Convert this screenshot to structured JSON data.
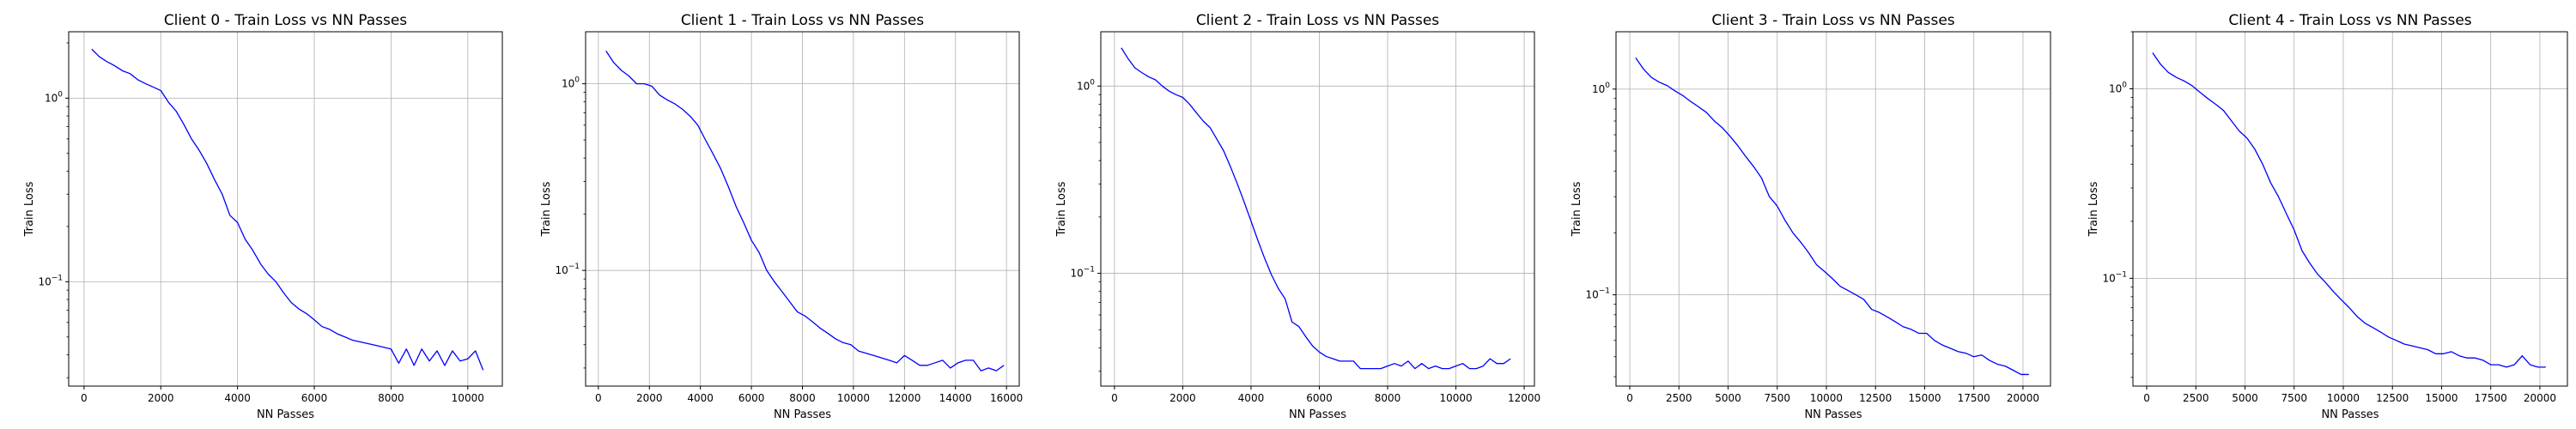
{
  "colors": {
    "line": "#0000ff",
    "grid": "#b0b0b0",
    "axes": "#000000"
  },
  "chart_data": [
    {
      "type": "line",
      "title": "Client 0 - Train Loss vs NN Passes",
      "xlabel": "NN Passes",
      "ylabel": "Train Loss",
      "yscale": "log",
      "grid": true,
      "xlim": [
        -400,
        10900
      ],
      "ylim": [
        0.027,
        2.3
      ],
      "xticks": [
        0,
        2000,
        4000,
        6000,
        8000,
        10000
      ],
      "xtick_labels": [
        "0",
        "2000",
        "4000",
        "6000",
        "8000",
        "10000"
      ],
      "series": [
        {
          "x": [
            200,
            400,
            600,
            800,
            1000,
            1200,
            1400,
            1600,
            1800,
            2000,
            2200,
            2400,
            2600,
            2800,
            3000,
            3200,
            3400,
            3600,
            3800,
            4000,
            4200,
            4400,
            4600,
            4800,
            5000,
            5200,
            5400,
            5600,
            5800,
            6000,
            6200,
            6400,
            6600,
            6800,
            7000,
            7200,
            7400,
            7600,
            7800,
            8000,
            8200,
            8400,
            8600,
            8800,
            9000,
            9200,
            9400,
            9600,
            9800,
            10000,
            10200,
            10400
          ],
          "y": [
            1.85,
            1.68,
            1.58,
            1.5,
            1.41,
            1.36,
            1.26,
            1.2,
            1.15,
            1.1,
            0.95,
            0.85,
            0.72,
            0.6,
            0.52,
            0.44,
            0.36,
            0.3,
            0.23,
            0.21,
            0.17,
            0.148,
            0.125,
            0.11,
            0.1,
            0.087,
            0.077,
            0.071,
            0.067,
            0.062,
            0.057,
            0.055,
            0.052,
            0.05,
            0.048,
            0.047,
            0.046,
            0.045,
            0.044,
            0.043,
            0.036,
            0.043,
            0.035,
            0.043,
            0.037,
            0.042,
            0.035,
            0.042,
            0.037,
            0.038,
            0.042,
            0.033
          ]
        }
      ]
    },
    {
      "type": "line",
      "title": "Client 1 - Train Loss vs NN Passes",
      "xlabel": "NN Passes",
      "ylabel": "Train Loss",
      "yscale": "log",
      "grid": true,
      "xlim": [
        -500,
        16500
      ],
      "ylim": [
        0.024,
        1.9
      ],
      "xticks": [
        0,
        2000,
        4000,
        6000,
        8000,
        10000,
        12000,
        14000,
        16000
      ],
      "xtick_labels": [
        "0",
        "2000",
        "4000",
        "6000",
        "8000",
        "10000",
        "12000",
        "14000",
        "16000"
      ],
      "series": [
        {
          "x": [
            300,
            600,
            900,
            1200,
            1500,
            1800,
            2100,
            2400,
            2700,
            3000,
            3300,
            3600,
            3900,
            4200,
            4500,
            4800,
            5100,
            5400,
            5700,
            6000,
            6300,
            6600,
            6900,
            7200,
            7500,
            7800,
            8100,
            8400,
            8700,
            9000,
            9300,
            9600,
            9900,
            10200,
            10500,
            10800,
            11100,
            11400,
            11700,
            12000,
            12300,
            12600,
            12900,
            13200,
            13500,
            13800,
            14100,
            14400,
            14700,
            15000,
            15300,
            15600,
            15900
          ],
          "y": [
            1.5,
            1.3,
            1.18,
            1.1,
            1.0,
            1.0,
            0.97,
            0.87,
            0.82,
            0.78,
            0.73,
            0.67,
            0.6,
            0.5,
            0.42,
            0.35,
            0.28,
            0.22,
            0.18,
            0.145,
            0.125,
            0.1,
            0.087,
            0.077,
            0.068,
            0.06,
            0.057,
            0.053,
            0.049,
            0.046,
            0.043,
            0.041,
            0.04,
            0.037,
            0.036,
            0.035,
            0.034,
            0.033,
            0.032,
            0.035,
            0.033,
            0.031,
            0.031,
            0.032,
            0.033,
            0.03,
            0.032,
            0.033,
            0.033,
            0.029,
            0.03,
            0.029,
            0.031
          ]
        }
      ]
    },
    {
      "type": "line",
      "title": "Client 2 - Train Loss vs NN Passes",
      "xlabel": "NN Passes",
      "ylabel": "Train Loss",
      "yscale": "log",
      "grid": true,
      "xlim": [
        -400,
        12300
      ],
      "ylim": [
        0.025,
        1.95
      ],
      "xticks": [
        0,
        2000,
        4000,
        6000,
        8000,
        10000,
        12000
      ],
      "xtick_labels": [
        "0",
        "2000",
        "4000",
        "6000",
        "8000",
        "10000",
        "12000"
      ],
      "series": [
        {
          "x": [
            200,
            400,
            600,
            800,
            1000,
            1200,
            1400,
            1600,
            1800,
            2000,
            2200,
            2400,
            2600,
            2800,
            3000,
            3200,
            3400,
            3600,
            3800,
            4000,
            4200,
            4400,
            4600,
            4800,
            5000,
            5200,
            5400,
            5600,
            5800,
            6000,
            6200,
            6400,
            6600,
            6800,
            7000,
            7200,
            7400,
            7600,
            7800,
            8000,
            8200,
            8400,
            8600,
            8800,
            9000,
            9200,
            9400,
            9600,
            9800,
            10000,
            10200,
            10400,
            10600,
            10800,
            11000,
            11200,
            11400,
            11600
          ],
          "y": [
            1.6,
            1.4,
            1.25,
            1.18,
            1.12,
            1.08,
            1.0,
            0.94,
            0.9,
            0.87,
            0.8,
            0.72,
            0.65,
            0.6,
            0.52,
            0.45,
            0.37,
            0.3,
            0.24,
            0.19,
            0.15,
            0.12,
            0.098,
            0.083,
            0.073,
            0.055,
            0.052,
            0.046,
            0.041,
            0.038,
            0.036,
            0.035,
            0.034,
            0.034,
            0.034,
            0.031,
            0.031,
            0.031,
            0.031,
            0.032,
            0.033,
            0.032,
            0.034,
            0.031,
            0.033,
            0.031,
            0.032,
            0.031,
            0.031,
            0.032,
            0.033,
            0.031,
            0.031,
            0.032,
            0.035,
            0.033,
            0.033,
            0.035
          ]
        }
      ]
    },
    {
      "type": "line",
      "title": "Client 3 - Train Loss vs NN Passes",
      "xlabel": "NN Passes",
      "ylabel": "Train Loss",
      "yscale": "log",
      "grid": true,
      "xlim": [
        -700,
        21400
      ],
      "ylim": [
        0.036,
        1.9
      ],
      "xticks": [
        0,
        2500,
        5000,
        7500,
        10000,
        12500,
        15000,
        17500,
        20000
      ],
      "xtick_labels": [
        "0",
        "2500",
        "5000",
        "7500",
        "10000",
        "12500",
        "15000",
        "17500",
        "20000"
      ],
      "series": [
        {
          "x": [
            300,
            700,
            1100,
            1500,
            1900,
            2300,
            2700,
            3100,
            3500,
            3900,
            4300,
            4700,
            5100,
            5500,
            5900,
            6300,
            6700,
            7100,
            7500,
            7900,
            8300,
            8700,
            9100,
            9500,
            9900,
            10300,
            10700,
            11100,
            11500,
            11900,
            12300,
            12700,
            13100,
            13500,
            13900,
            14300,
            14700,
            15100,
            15500,
            15900,
            16300,
            16700,
            17100,
            17500,
            17900,
            18300,
            18700,
            19100,
            19500,
            19900,
            20300
          ],
          "y": [
            1.42,
            1.25,
            1.14,
            1.08,
            1.04,
            0.98,
            0.93,
            0.87,
            0.82,
            0.77,
            0.7,
            0.65,
            0.59,
            0.53,
            0.47,
            0.42,
            0.37,
            0.3,
            0.27,
            0.23,
            0.2,
            0.18,
            0.16,
            0.14,
            0.13,
            0.12,
            0.11,
            0.105,
            0.1,
            0.095,
            0.085,
            0.082,
            0.078,
            0.074,
            0.07,
            0.068,
            0.065,
            0.065,
            0.06,
            0.057,
            0.055,
            0.053,
            0.052,
            0.05,
            0.051,
            0.048,
            0.046,
            0.045,
            0.043,
            0.041,
            0.041
          ]
        }
      ]
    },
    {
      "type": "line",
      "title": "Client 4 - Train Loss vs NN Passes",
      "xlabel": "NN Passes",
      "ylabel": "Train Loss",
      "yscale": "log",
      "grid": true,
      "xlim": [
        -700,
        21400
      ],
      "ylim": [
        0.027,
        2.0
      ],
      "xticks": [
        0,
        2500,
        5000,
        7500,
        10000,
        12500,
        15000,
        17500,
        20000
      ],
      "xtick_labels": [
        "0",
        "2500",
        "5000",
        "7500",
        "10000",
        "12500",
        "15000",
        "17500",
        "20000"
      ],
      "series": [
        {
          "x": [
            300,
            700,
            1100,
            1500,
            1900,
            2300,
            2700,
            3100,
            3500,
            3900,
            4300,
            4700,
            5100,
            5500,
            5900,
            6300,
            6700,
            7100,
            7500,
            7900,
            8300,
            8700,
            9100,
            9500,
            9900,
            10300,
            10700,
            11100,
            11500,
            11900,
            12300,
            12700,
            13100,
            13500,
            13900,
            14300,
            14700,
            15100,
            15500,
            15900,
            16300,
            16700,
            17100,
            17500,
            17900,
            18300,
            18700,
            19100,
            19500,
            19900,
            20300
          ],
          "y": [
            1.55,
            1.35,
            1.22,
            1.15,
            1.1,
            1.04,
            0.96,
            0.89,
            0.83,
            0.77,
            0.68,
            0.6,
            0.55,
            0.48,
            0.4,
            0.32,
            0.27,
            0.22,
            0.18,
            0.14,
            0.12,
            0.105,
            0.095,
            0.085,
            0.077,
            0.07,
            0.063,
            0.058,
            0.055,
            0.052,
            0.049,
            0.047,
            0.045,
            0.044,
            0.043,
            0.042,
            0.04,
            0.04,
            0.041,
            0.039,
            0.038,
            0.038,
            0.037,
            0.035,
            0.035,
            0.034,
            0.035,
            0.039,
            0.035,
            0.034,
            0.034
          ]
        }
      ]
    }
  ]
}
